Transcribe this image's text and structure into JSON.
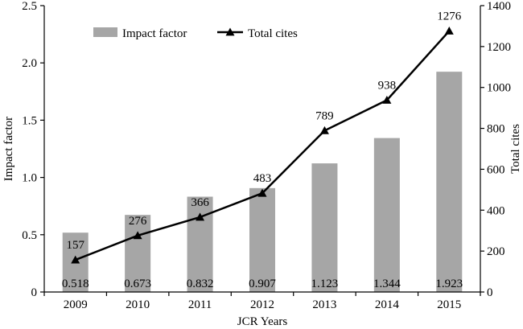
{
  "chart_data": {
    "type": "bar+line",
    "categories": [
      "2009",
      "2010",
      "2011",
      "2012",
      "2013",
      "2014",
      "2015"
    ],
    "series": [
      {
        "name": "Impact factor",
        "type": "bar",
        "axis": "left",
        "color": "#a6a6a6",
        "values": [
          0.518,
          0.673,
          0.832,
          0.907,
          1.123,
          1.344,
          1.923
        ],
        "labels": [
          "0.518",
          "0.673",
          "0.832",
          "0.907",
          "1.123",
          "1.344",
          "1.923"
        ]
      },
      {
        "name": "Total cites",
        "type": "line",
        "axis": "right",
        "color": "#000000",
        "marker": "triangle",
        "values": [
          157,
          276,
          366,
          483,
          789,
          938,
          1276
        ],
        "labels": [
          "157",
          "276",
          "366",
          "483",
          "789",
          "938",
          "1276"
        ]
      }
    ],
    "xlabel": "JCR Years",
    "ylabel": "Impact factor",
    "y2label": "Total cites",
    "ylim": [
      0,
      2.5
    ],
    "y2lim": [
      0,
      1400
    ],
    "yticks": [
      "0",
      "0.5",
      "1.0",
      "1.5",
      "2.0",
      "2.5"
    ],
    "yticks_values": [
      0,
      0.5,
      1.0,
      1.5,
      2.0,
      2.5
    ],
    "y2ticks": [
      "0",
      "200",
      "400",
      "600",
      "800",
      "1000",
      "1200",
      "1400"
    ],
    "y2ticks_values": [
      0,
      200,
      400,
      600,
      800,
      1000,
      1200,
      1400
    ],
    "grid": false,
    "legend": {
      "position": "top-left",
      "orientation": "horizontal"
    }
  }
}
